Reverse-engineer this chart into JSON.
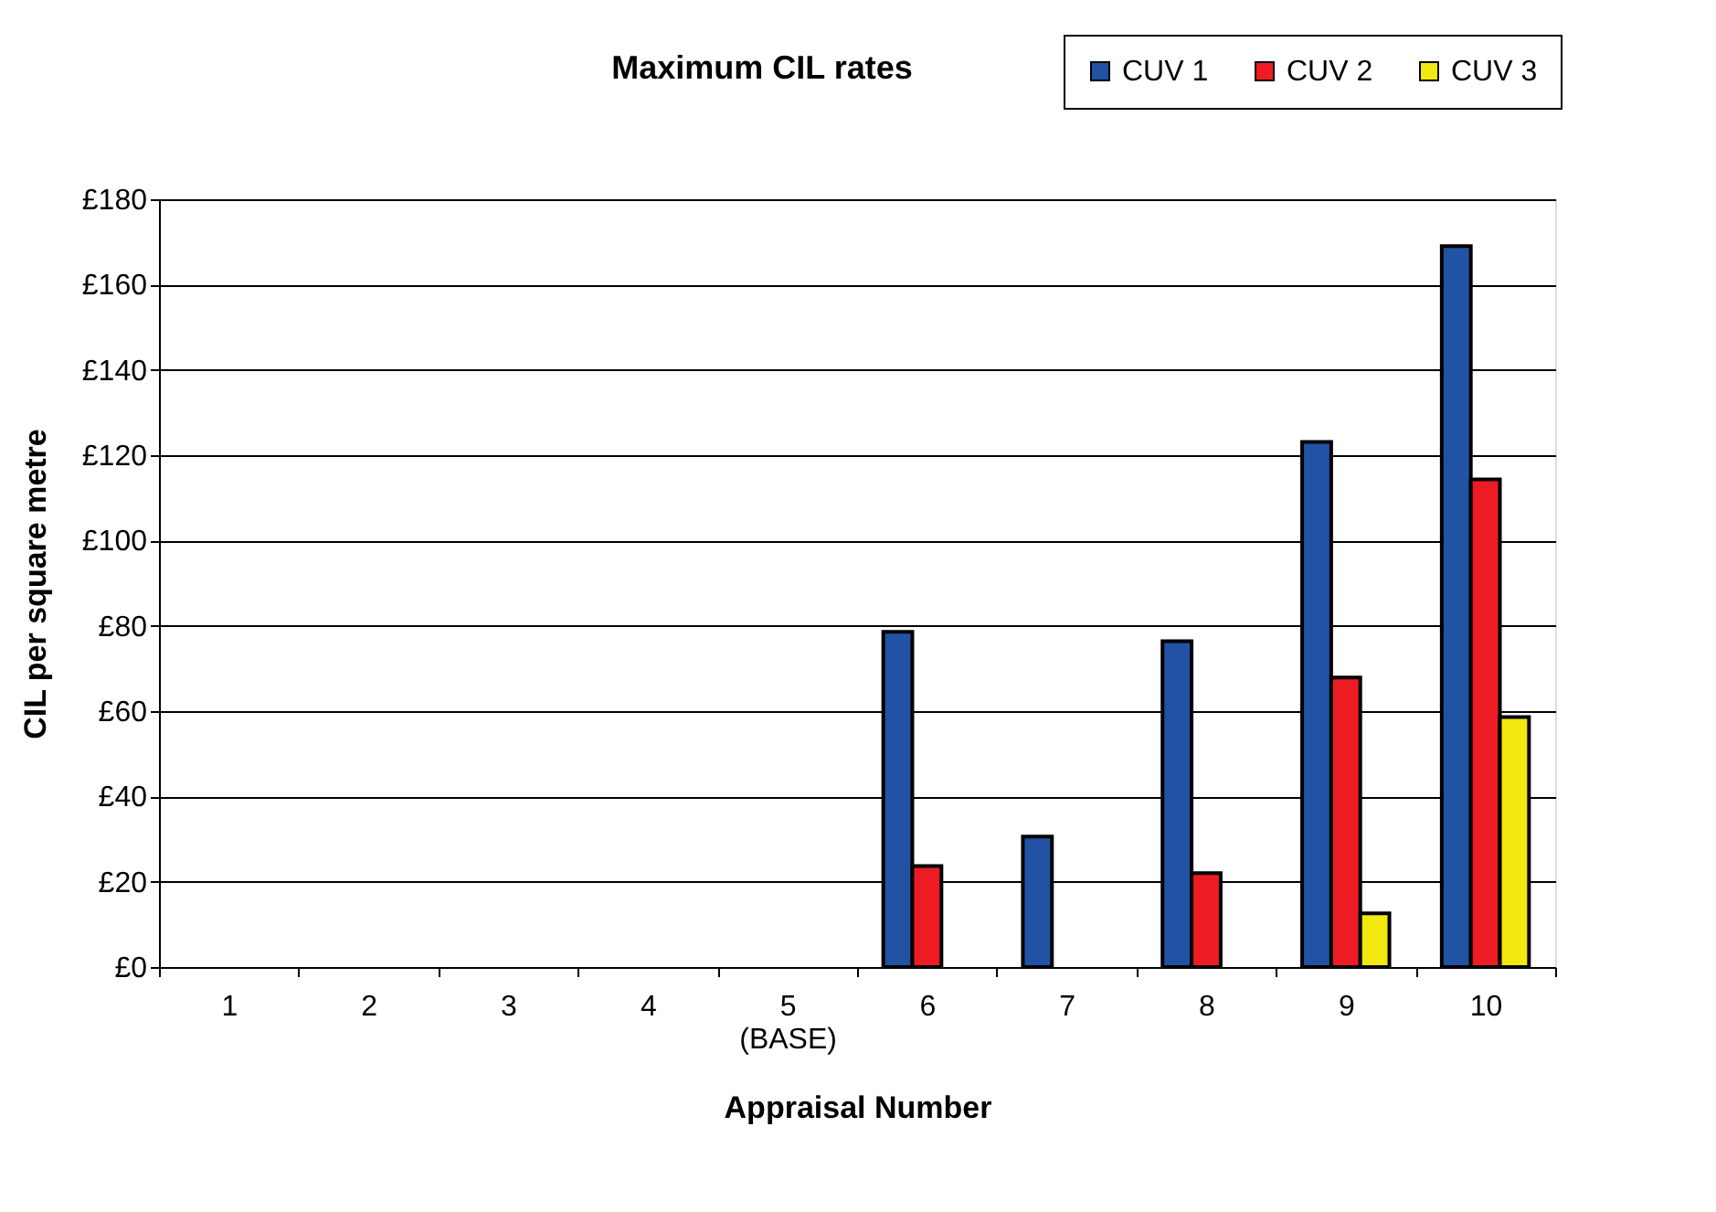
{
  "chart_data": {
    "type": "bar",
    "title": "Maximum  CIL rates",
    "xlabel": "Appraisal Number",
    "ylabel": "CIL per square metre",
    "categories": [
      "1",
      "2",
      "3",
      "4",
      "5\n(BASE)",
      "6",
      "7",
      "8",
      "9",
      "10"
    ],
    "series": [
      {
        "name": "CUV 1",
        "color": "#2152a3",
        "values": [
          null,
          null,
          null,
          null,
          null,
          78.6,
          30.6,
          76.4,
          123.1,
          169
        ]
      },
      {
        "name": "CUV 2",
        "color": "#ed1c24",
        "values": [
          null,
          null,
          null,
          null,
          null,
          23.7,
          null,
          22,
          67.9,
          114.3
        ]
      },
      {
        "name": "CUV 3",
        "color": "#f2e70f",
        "values": [
          null,
          null,
          null,
          null,
          null,
          null,
          null,
          null,
          12.6,
          58.6
        ]
      }
    ],
    "ylim": [
      0,
      180
    ],
    "yticks": [
      {
        "value": 0,
        "label": "£0"
      },
      {
        "value": 20,
        "label": "£20"
      },
      {
        "value": 40,
        "label": "£40"
      },
      {
        "value": 60,
        "label": "£60"
      },
      {
        "value": 80,
        "label": "£80"
      },
      {
        "value": 100,
        "label": "£100"
      },
      {
        "value": 120,
        "label": "£120"
      },
      {
        "value": 140,
        "label": "£140"
      },
      {
        "value": 160,
        "label": "£160"
      },
      {
        "value": 180,
        "label": "£180"
      }
    ],
    "grid": "y",
    "legend": "top right"
  }
}
